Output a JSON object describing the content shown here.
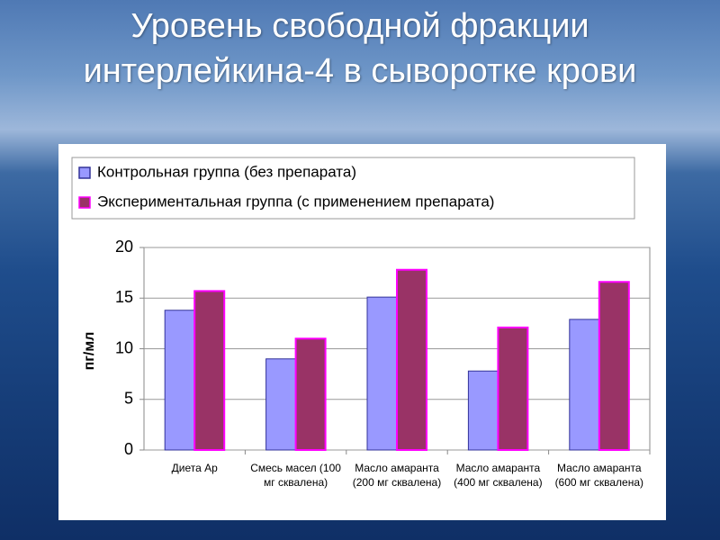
{
  "chart_data": {
    "type": "bar",
    "title": "Уровень свободной фракции интерлейкина-4 в сыворотке крови",
    "categories": [
      "Диета Ар",
      "Смесь масел (100 мг сквалена)",
      "Масло амаранта (200 мг сквалена)",
      "Масло амаранта (400 мг сквалена)",
      "Масло амаранта (600 мг сквалена)"
    ],
    "series": [
      {
        "name": "Контрольная группа (без препарата)",
        "color": "#9999ff",
        "values": [
          13.8,
          9.0,
          15.1,
          7.8,
          12.9
        ]
      },
      {
        "name": "Экспериментальная группа (с применением препарата)",
        "color": "#993366",
        "values": [
          15.7,
          11.0,
          17.8,
          12.1,
          16.6
        ]
      }
    ],
    "y_label": "пг/мл",
    "ylim": [
      0,
      20
    ],
    "yticks": [
      0,
      5,
      10,
      15,
      20
    ],
    "grid": true,
    "legend": "top"
  }
}
